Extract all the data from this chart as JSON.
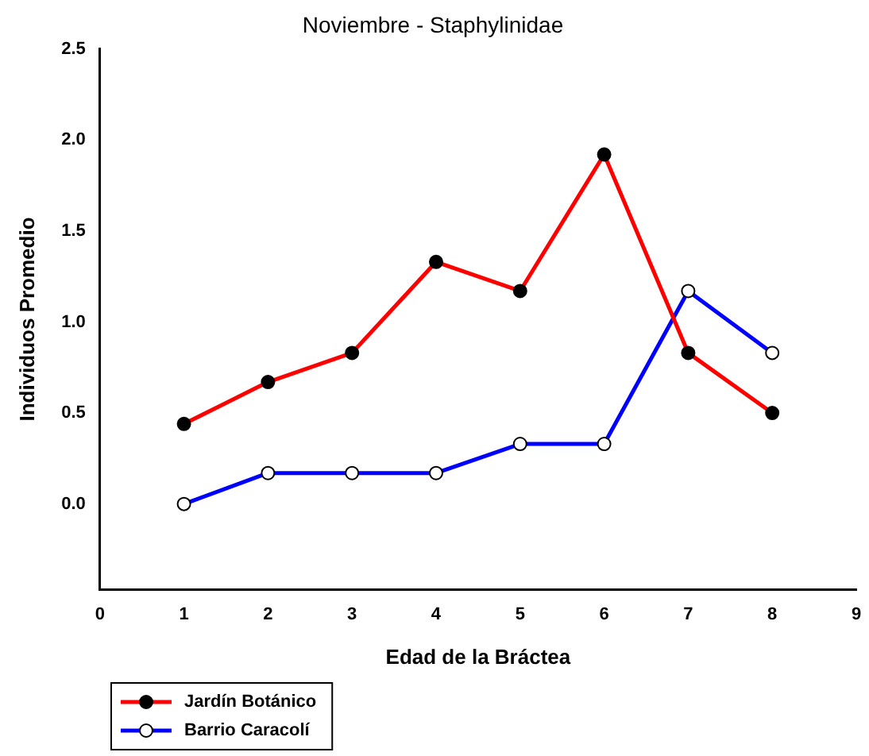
{
  "chart_data": {
    "type": "line",
    "title": "Noviembre - Staphylinidae",
    "xlabel": "Edad de la Bráctea",
    "ylabel": "Individuos Promedio",
    "x": [
      1,
      2,
      3,
      4,
      5,
      6,
      7,
      8
    ],
    "series": [
      {
        "name": "Jardín Botánico",
        "color": "#ff0000",
        "values": [
          0.44,
          0.67,
          0.83,
          1.33,
          1.17,
          1.92,
          0.83,
          0.5
        ]
      },
      {
        "name": "Barrio Caracolí",
        "color": "#0000ff",
        "values": [
          0,
          0.17,
          0.17,
          0.17,
          0.33,
          0.33,
          1.17,
          0.83
        ]
      }
    ],
    "xlim": [
      0,
      9
    ],
    "xticks": [
      0,
      1,
      2,
      3,
      4,
      5,
      6,
      7,
      8,
      9
    ],
    "ylim": [
      -0.47,
      2.5
    ],
    "yticks": [
      {
        "value": 0,
        "label": "0.0"
      },
      {
        "value": 0.5,
        "label": "0.5"
      },
      {
        "value": 1,
        "label": "1.0"
      },
      {
        "value": 1.5,
        "label": "1.5"
      },
      {
        "value": 2,
        "label": "2.0"
      },
      {
        "value": 2.5,
        "label": "2.5"
      }
    ],
    "grid": false,
    "legend": "bottom left",
    "marker": "circle",
    "line_style": "solid"
  }
}
